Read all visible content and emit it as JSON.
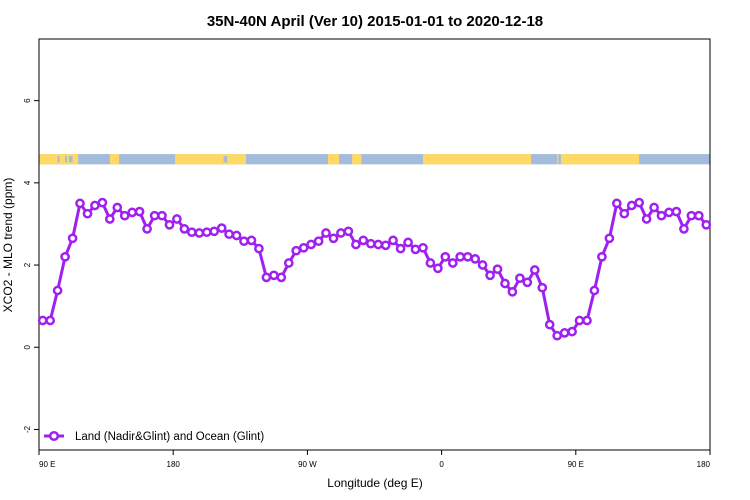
{
  "chart_data": {
    "type": "line",
    "title": "35N-40N April (Ver 10)   2015-01-01 to 2020-12-18",
    "xlabel": "Longitude (deg E)",
    "ylabel": "XCO2 - MLO trend (ppm)",
    "xlim": [
      90,
      450
    ],
    "ylim": [
      -2.5,
      7.5
    ],
    "x_ticks": [
      {
        "value": 90,
        "label": "90 E"
      },
      {
        "value": 162,
        "label": "180"
      },
      {
        "value": 234,
        "label": "90 W"
      },
      {
        "value": 306,
        "label": "0"
      },
      {
        "value": 378,
        "label": "90 E"
      },
      {
        "value": 450,
        "label": "180"
      }
    ],
    "y_ticks": [
      {
        "value": -2,
        "label": "-2"
      },
      {
        "value": 0,
        "label": "0"
      },
      {
        "value": 2,
        "label": "2"
      },
      {
        "value": 4,
        "label": "4"
      },
      {
        "value": 6,
        "label": "6"
      }
    ],
    "grid": false,
    "legend_position": "bottom-left",
    "series": [
      {
        "name": "Land (Nadir&Glint) and Ocean (Glint)",
        "color": "#a020f0",
        "marker": "open-circle",
        "x": [
          92,
          96,
          100,
          104,
          108,
          112,
          116,
          120,
          124,
          128,
          132,
          136,
          140,
          144,
          148,
          152,
          156,
          160,
          164,
          168,
          172,
          176,
          180,
          184,
          188,
          192,
          196,
          200,
          204,
          208,
          212,
          216,
          220,
          224,
          228,
          232,
          236,
          240,
          244,
          248,
          252,
          256,
          260,
          264,
          268,
          272,
          276,
          280,
          284,
          288,
          292,
          296,
          300,
          304,
          308,
          312,
          316,
          320,
          324,
          328,
          332,
          336,
          340,
          344,
          348,
          352,
          356,
          360,
          364,
          368,
          372,
          376,
          380,
          384,
          388,
          392,
          396,
          400,
          404,
          408,
          412,
          416,
          420,
          424,
          428,
          432,
          436,
          440,
          444,
          448
        ],
        "y": [
          0.65,
          0.65,
          1.38,
          2.2,
          2.65,
          3.5,
          3.25,
          3.45,
          3.52,
          3.12,
          3.4,
          3.2,
          3.28,
          3.3,
          2.88,
          3.2,
          3.2,
          2.98,
          3.12,
          2.88,
          2.8,
          2.78,
          2.8,
          2.82,
          2.9,
          2.75,
          2.72,
          2.58,
          2.6,
          2.4,
          1.7,
          1.75,
          1.7,
          2.05,
          2.35,
          2.42,
          2.5,
          2.58,
          2.78,
          2.65,
          2.78,
          2.82,
          2.5,
          2.6,
          2.52,
          2.5,
          2.48,
          2.6,
          2.4,
          2.55,
          2.38,
          2.42,
          2.05,
          1.92,
          2.2,
          2.05,
          2.2,
          2.2,
          2.15,
          2.0,
          1.75,
          1.9,
          1.55,
          1.35,
          1.68,
          1.58,
          1.88,
          1.45,
          0.55,
          0.28,
          0.35,
          0.38,
          0.65,
          0.65,
          1.38,
          2.2,
          2.65,
          3.5,
          3.25,
          3.45,
          3.52,
          3.12,
          3.4,
          3.2,
          3.28,
          3.3,
          2.88,
          3.2,
          3.2,
          2.98
        ]
      }
    ],
    "land_ocean_strip": {
      "y_range": [
        4.45,
        4.7
      ],
      "land_color": "#ffd966",
      "ocean_color": "#a3bcdc",
      "land_segments": [
        [
          90,
          111
        ],
        [
          128,
          133
        ],
        [
          163,
          201
        ],
        [
          245,
          251
        ],
        [
          258,
          263
        ],
        [
          296,
          354
        ],
        [
          368,
          368
        ],
        [
          370,
          412
        ]
      ],
      "ocean_specks": [
        [
          100,
          101
        ],
        [
          104,
          105
        ],
        [
          106,
          108
        ],
        [
          189,
          191
        ],
        [
          360,
          361
        ]
      ]
    }
  }
}
